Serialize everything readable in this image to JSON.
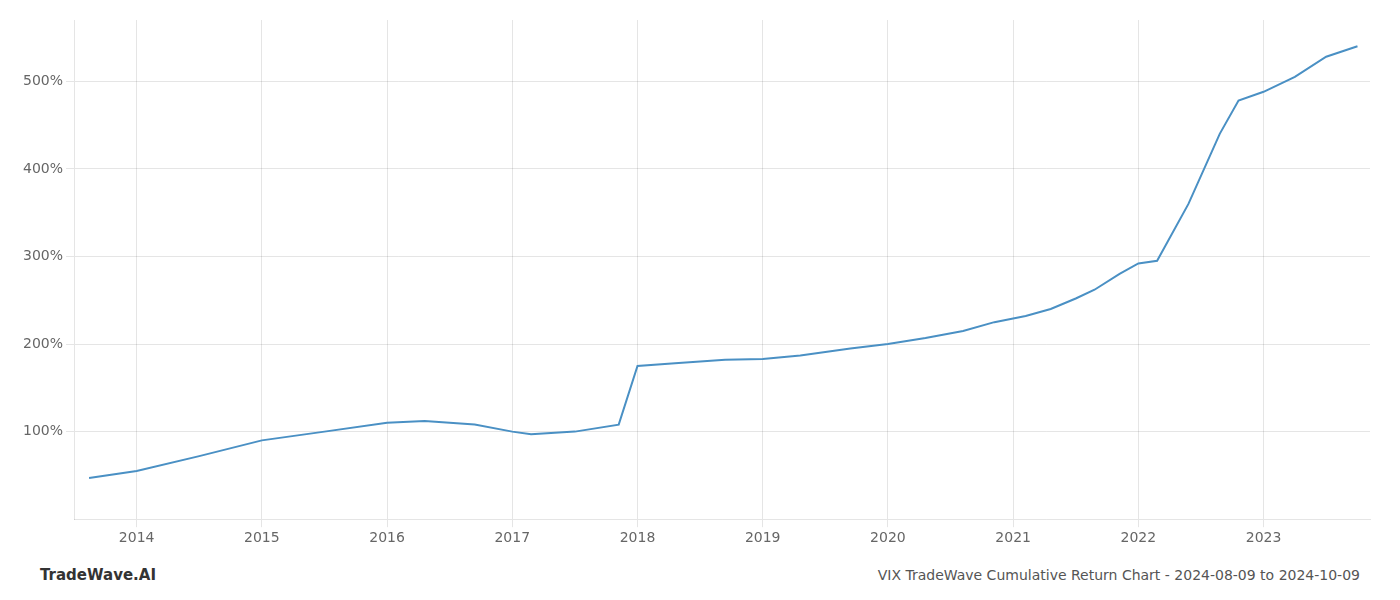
{
  "chart_data": {
    "type": "line",
    "title": "VIX TradeWave Cumulative Return Chart - 2024-08-09 to 2024-10-09",
    "annotations": [
      "TradeWave.AI"
    ],
    "x": [
      2013.62,
      2014.0,
      2014.5,
      2015.0,
      2015.5,
      2016.0,
      2016.3,
      2016.7,
      2017.0,
      2017.15,
      2017.5,
      2017.85,
      2018.0,
      2018.3,
      2018.7,
      2019.0,
      2019.3,
      2019.7,
      2020.0,
      2020.3,
      2020.6,
      2020.85,
      2021.1,
      2021.3,
      2021.5,
      2021.65,
      2021.85,
      2022.0,
      2022.15,
      2022.4,
      2022.65,
      2022.8,
      2023.0,
      2023.25,
      2023.5,
      2023.75
    ],
    "values": [
      47,
      55,
      72,
      90,
      100,
      110,
      112,
      108,
      100,
      97,
      100,
      108,
      175,
      178,
      182,
      183,
      187,
      195,
      200,
      207,
      215,
      225,
      232,
      240,
      252,
      262,
      280,
      292,
      295,
      360,
      440,
      478,
      488,
      505,
      528,
      540
    ],
    "color": "#4a90c4",
    "xlim": [
      2013.5,
      2023.85
    ],
    "xticks": [
      2014,
      2015,
      2016,
      2017,
      2018,
      2019,
      2020,
      2021,
      2022,
      2023
    ],
    "ylim": [
      0,
      570
    ],
    "yticks": [
      {
        "value": 100,
        "label": "100%"
      },
      {
        "value": 200,
        "label": "200%"
      },
      {
        "value": 300,
        "label": "300%"
      },
      {
        "value": 400,
        "label": "400%"
      },
      {
        "value": 500,
        "label": "500%"
      }
    ],
    "grid": true
  }
}
